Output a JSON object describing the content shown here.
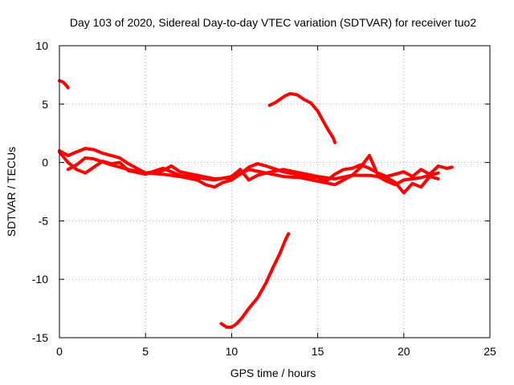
{
  "chart_data": {
    "type": "scatter",
    "title": "Day 103 of 2020, Sidereal Day-to-day VTEC variation (SDTVAR) for receiver tuo2",
    "xlabel": "GPS time / hours",
    "ylabel": "SDTVAR / TECUs",
    "xlim": [
      0,
      25
    ],
    "ylim": [
      -15,
      10
    ],
    "xticks": [
      0,
      5,
      10,
      15,
      20,
      25
    ],
    "yticks": [
      -15,
      -10,
      -5,
      0,
      5,
      10
    ],
    "xtick_labels": [
      "0",
      "5",
      "10",
      "15",
      "20",
      "25"
    ],
    "ytick_labels": [
      "-15",
      "-10",
      "-5",
      "0",
      "5",
      "10"
    ],
    "grid": true,
    "color": "#ff0000",
    "series": [
      {
        "name": "arc-high-start",
        "x": [
          0.0,
          0.2,
          0.4,
          0.5
        ],
        "y": [
          7.0,
          6.9,
          6.6,
          6.4
        ]
      },
      {
        "name": "arc-high-mid",
        "x": [
          12.2,
          12.5,
          12.8,
          13.1,
          13.4,
          13.8,
          14.2,
          14.6,
          15.0,
          15.3,
          15.6,
          15.9,
          16.0
        ],
        "y": [
          4.9,
          5.1,
          5.4,
          5.7,
          5.9,
          5.8,
          5.4,
          5.1,
          4.4,
          3.6,
          2.8,
          2.1,
          1.7
        ]
      },
      {
        "name": "arc-low-mid",
        "x": [
          9.4,
          9.7,
          10.0,
          10.3,
          10.6,
          11.0,
          11.5,
          12.0,
          12.4,
          12.8,
          13.1,
          13.3
        ],
        "y": [
          -13.8,
          -14.1,
          -14.1,
          -13.8,
          -13.3,
          -12.5,
          -11.6,
          -10.3,
          -9.0,
          -7.8,
          -6.7,
          -6.1
        ]
      },
      {
        "name": "band-a",
        "x": [
          0.0,
          0.5,
          1.0,
          1.5,
          2.0,
          2.5,
          3.0,
          3.5,
          4.0,
          5.0,
          6.0,
          7.0,
          8.0,
          8.5,
          9.0,
          9.5,
          10.0,
          10.5,
          11.0,
          11.5,
          12.0,
          13.0,
          14.0,
          15.0,
          15.5,
          16.0,
          16.5,
          17.0,
          17.5,
          18.0,
          18.5,
          19.0,
          19.5,
          20.0,
          20.5,
          21.0,
          21.5,
          22.0,
          22.5,
          22.8
        ],
        "y": [
          1.0,
          0.6,
          0.9,
          1.2,
          1.1,
          0.8,
          0.6,
          0.4,
          -0.1,
          -0.9,
          -1.0,
          -1.2,
          -1.5,
          -1.9,
          -2.1,
          -1.7,
          -1.5,
          -1.0,
          -0.4,
          -0.1,
          -0.3,
          -0.8,
          -1.1,
          -1.3,
          -1.6,
          -1.0,
          -0.6,
          -0.5,
          -0.2,
          -0.5,
          -0.9,
          -1.2,
          -1.0,
          -0.8,
          -1.2,
          -0.6,
          -1.0,
          -0.3,
          -0.5,
          -0.4
        ]
      },
      {
        "name": "band-b",
        "x": [
          0.0,
          0.5,
          1.0,
          1.5,
          2.0,
          2.5,
          3.0,
          3.5,
          4.0,
          5.0,
          6.0,
          7.0,
          8.0,
          9.0,
          10.0,
          10.5,
          11.0,
          11.5,
          12.0,
          13.0,
          14.0,
          15.0,
          16.0,
          17.0,
          17.5,
          18.0,
          18.5,
          19.0,
          19.5,
          20.0,
          20.5,
          21.0,
          21.5,
          22.0
        ],
        "y": [
          0.9,
          0.0,
          -0.6,
          -0.9,
          -0.4,
          0.1,
          -0.1,
          0.0,
          -0.7,
          -1.0,
          -0.5,
          -1.1,
          -1.3,
          -1.5,
          -1.2,
          -0.6,
          -1.5,
          -1.1,
          -0.9,
          -1.2,
          -1.3,
          -1.6,
          -1.9,
          -1.1,
          -0.4,
          0.6,
          -1.1,
          -1.3,
          -1.7,
          -2.6,
          -1.8,
          -2.1,
          -1.2,
          -1.4
        ]
      },
      {
        "name": "band-c",
        "x": [
          0.5,
          1.0,
          1.5,
          2.0,
          3.0,
          4.0,
          5.0,
          6.0,
          6.5,
          7.0,
          8.0,
          9.0,
          10.0,
          11.0,
          12.0,
          13.0,
          14.0,
          15.0,
          16.0,
          17.0,
          18.0,
          18.5,
          19.0,
          19.5,
          20.0,
          21.0,
          22.0
        ],
        "y": [
          -0.6,
          -0.2,
          0.4,
          0.3,
          -0.2,
          -0.6,
          -0.9,
          -0.7,
          -0.3,
          -0.8,
          -1.1,
          -1.4,
          -1.3,
          -0.6,
          -0.9,
          -0.6,
          -0.9,
          -1.2,
          -1.4,
          -1.1,
          -1.1,
          -1.2,
          -1.6,
          -1.9,
          -1.5,
          -1.3,
          -0.9
        ]
      }
    ]
  }
}
